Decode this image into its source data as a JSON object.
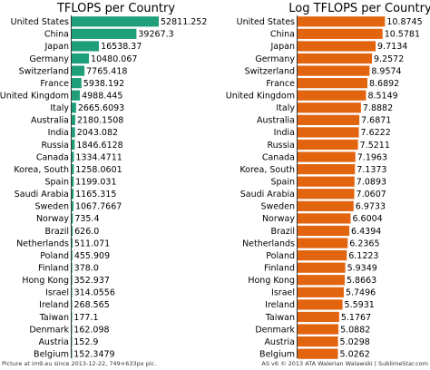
{
  "chart_data": [
    {
      "type": "bar",
      "orientation": "horizontal",
      "title": "TFLOPS per Country",
      "color": "#1f9e7a",
      "categories": [
        "United States",
        "China",
        "Japan",
        "Germany",
        "Switzerland",
        "France",
        "United Kingdom",
        "Italy",
        "Australia",
        "India",
        "Russia",
        "Canada",
        "Korea, South",
        "Spain",
        "Saudi Arabia",
        "Sweden",
        "Norway",
        "Brazil",
        "Netherlands",
        "Poland",
        "Finland",
        "Hong Kong",
        "Israel",
        "Ireland",
        "Taiwan",
        "Denmark",
        "Austria",
        "Belgium"
      ],
      "values": [
        52811.252,
        39267.3,
        16538.37,
        10480.067,
        7765.418,
        5938.192,
        4988.445,
        2665.6093,
        2180.1508,
        2043.082,
        1846.6128,
        1334.4711,
        1258.0601,
        1199.031,
        1165.315,
        1067.7667,
        735.4,
        626.0,
        511.071,
        455.909,
        378.0,
        352.937,
        314.0556,
        268.565,
        177.1,
        162.098,
        152.9,
        152.3479
      ],
      "value_labels": [
        "52811.252",
        "39267.3",
        "16538.37",
        "10480.067",
        "7765.418",
        "5938.192",
        "4988.445",
        "2665.6093",
        "2180.1508",
        "2043.082",
        "1846.6128",
        "1334.4711",
        "1258.0601",
        "1199.031",
        "1165.315",
        "1067.7667",
        "735.4",
        "626.0",
        "511.071",
        "455.909",
        "378.0",
        "352.937",
        "314.0556",
        "268.565",
        "177.1",
        "162.098",
        "152.9",
        "152.3479"
      ],
      "xlim": [
        0,
        55000
      ]
    },
    {
      "type": "bar",
      "orientation": "horizontal",
      "title": "Log TFLOPS per Country",
      "color": "#e3640e",
      "categories": [
        "United States",
        "China",
        "Japan",
        "Germany",
        "Switzerland",
        "France",
        "United Kingdom",
        "Italy",
        "Australia",
        "India",
        "Russia",
        "Canada",
        "Korea, South",
        "Spain",
        "Saudi Arabia",
        "Sweden",
        "Norway",
        "Brazil",
        "Netherlands",
        "Poland",
        "Finland",
        "Hong Kong",
        "Israel",
        "Ireland",
        "Taiwan",
        "Denmark",
        "Austria",
        "Belgium"
      ],
      "values": [
        10.8745,
        10.5781,
        9.7134,
        9.2572,
        8.9574,
        8.6892,
        8.5149,
        7.8882,
        7.6871,
        7.6222,
        7.5211,
        7.1963,
        7.1373,
        7.0893,
        7.0607,
        6.9733,
        6.6004,
        6.4394,
        6.2365,
        6.1223,
        5.9349,
        5.8663,
        5.7496,
        5.5931,
        5.1767,
        5.0882,
        5.0298,
        5.0262
      ],
      "value_labels": [
        "10.8745",
        "10.5781",
        "9.7134",
        "9.2572",
        "8.9574",
        "8.6892",
        "8.5149",
        "7.8882",
        "7.6871",
        "7.6222",
        "7.5211",
        "7.1963",
        "7.1373",
        "7.0893",
        "7.0607",
        "6.9733",
        "6.6004",
        "6.4394",
        "6.2365",
        "6.1223",
        "5.9349",
        "5.8663",
        "5.7496",
        "5.5931",
        "5.1767",
        "5.0882",
        "5.0298",
        "5.0262"
      ],
      "xlim": [
        0,
        11.4
      ]
    }
  ],
  "footer": {
    "left": "Picture at im9.eu since 2013-12-22, 749×633px pic.",
    "right": "AS v6 © 2013 ATA Walerian Walawski | SublimeStar.com"
  }
}
